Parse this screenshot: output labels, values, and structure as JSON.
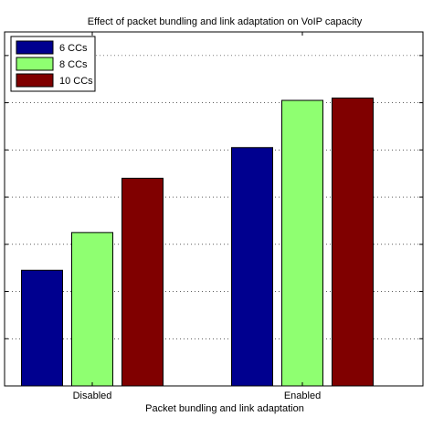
{
  "chart_data": {
    "type": "bar",
    "title": "Effect of packet bundling and link adaptation on VoIP capacity",
    "xlabel": "Packet bundling and link adaptation",
    "ylabel": "",
    "categories": [
      "Disabled",
      "Enabled"
    ],
    "series": [
      {
        "name": "6 CCs",
        "color": "#00008f",
        "values": [
          24.5,
          50.5
        ]
      },
      {
        "name": "8 CCs",
        "color": "#8fff71",
        "values": [
          32.5,
          60.5
        ]
      },
      {
        "name": "10 CCs",
        "color": "#800000",
        "values": [
          44,
          61
        ]
      }
    ],
    "ylim": [
      0,
      75
    ],
    "y_tick_values": [
      0,
      10,
      20,
      30,
      40,
      50,
      60,
      70
    ],
    "y_tick_labels_visible": false,
    "grid": "horizontal dotted",
    "legend_position": "top-left",
    "bar_outline_color": "#000000"
  }
}
